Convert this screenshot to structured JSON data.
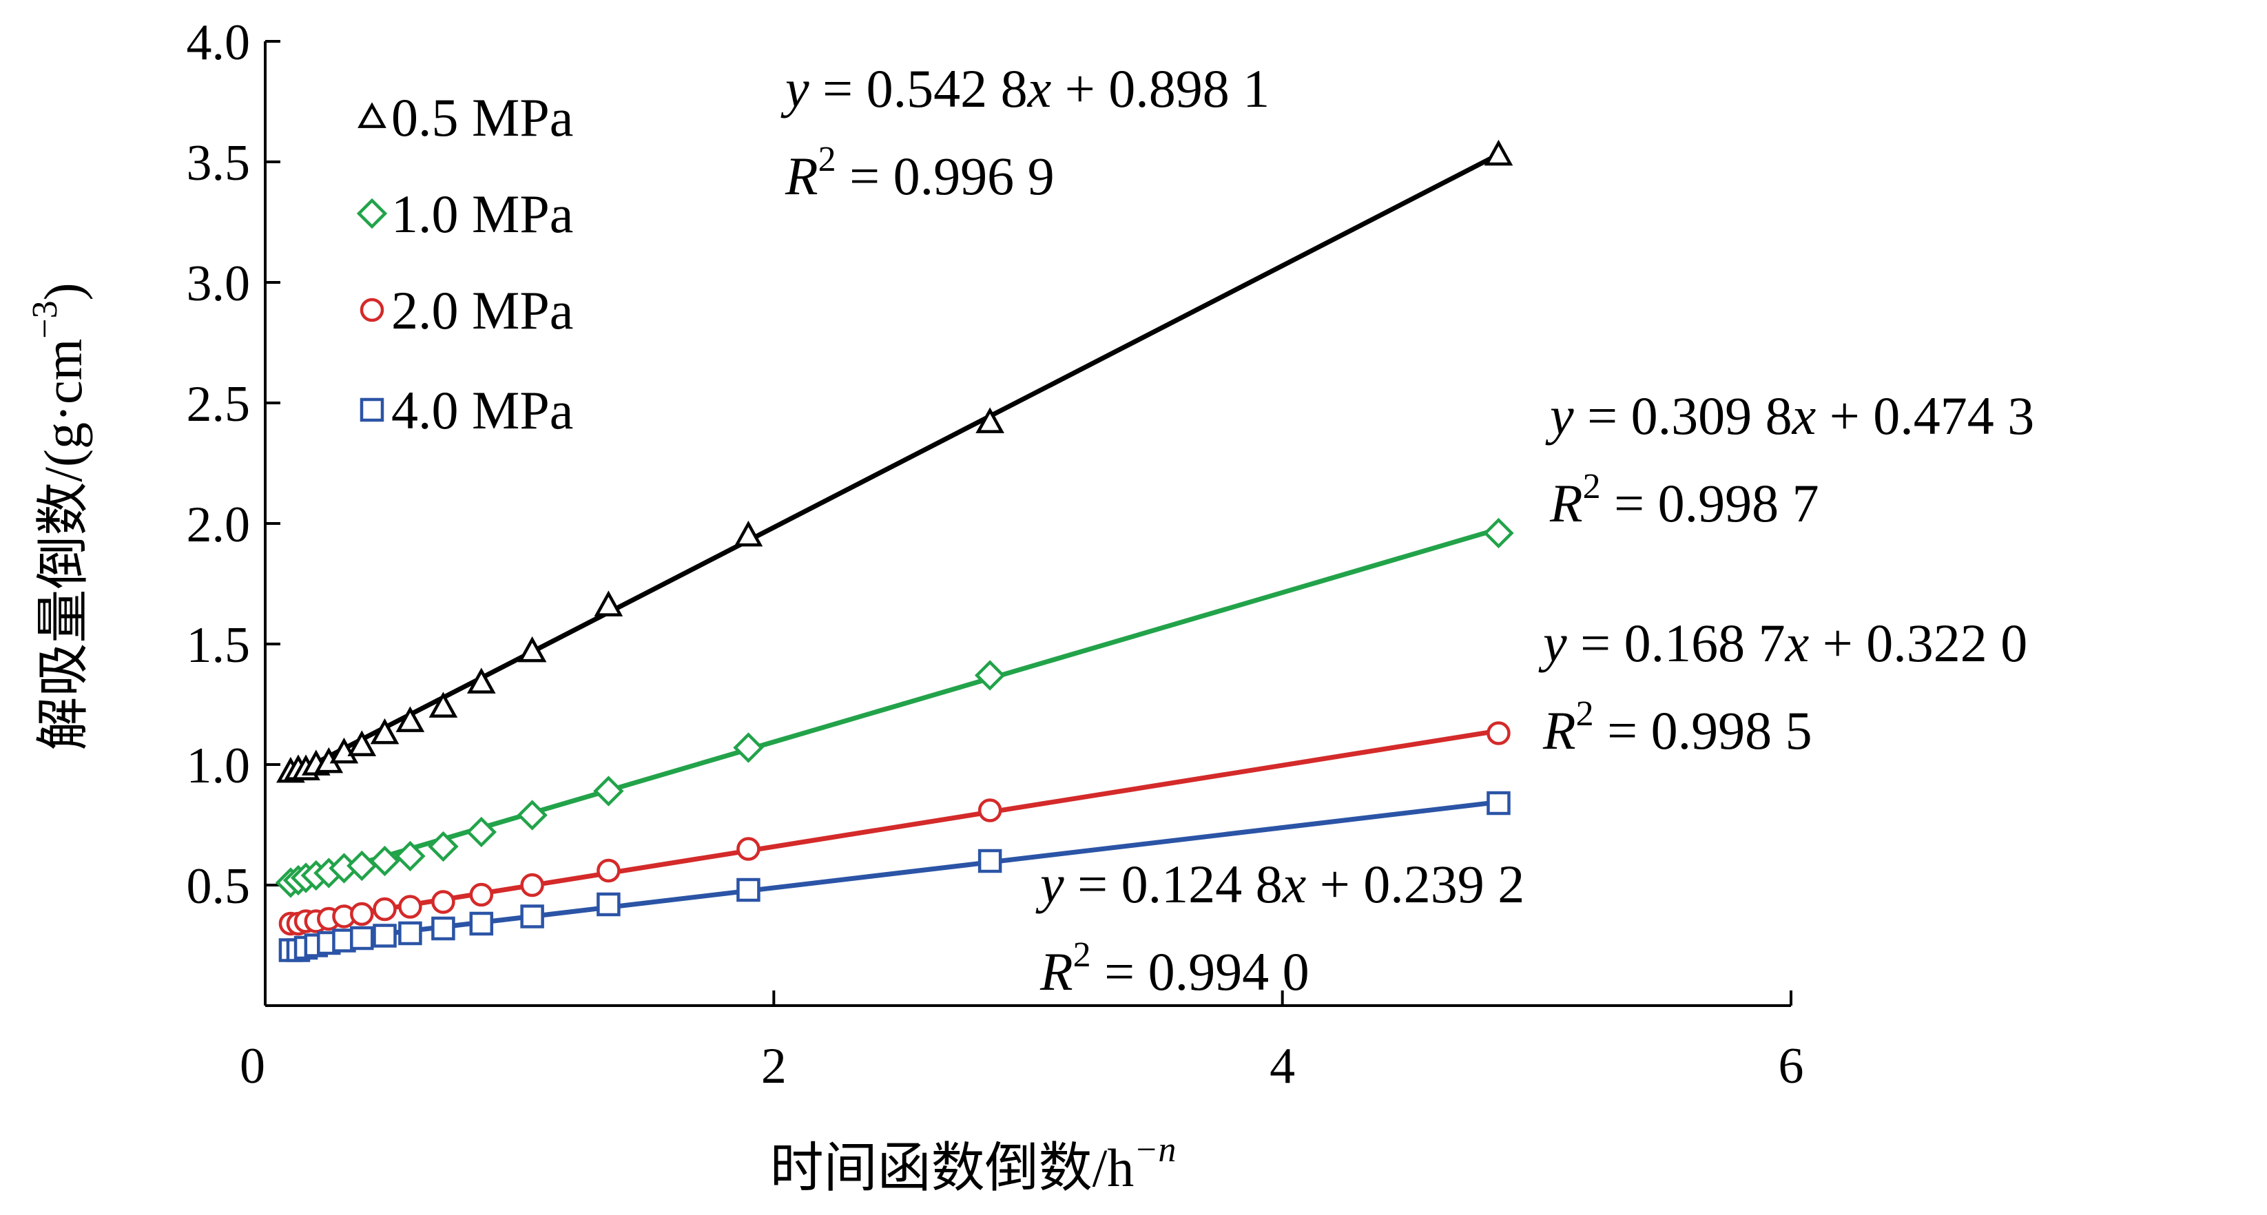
{
  "chart_data": {
    "type": "scatter",
    "title": "",
    "xlabel": "时间函数倒数/h",
    "xlabel_sup": "−n",
    "ylabel": "解吸量倒数/(g·cm",
    "ylabel_sup": "−3",
    "ylabel_end": ")",
    "xlim": [
      0,
      6
    ],
    "ylim": [
      0,
      4.0
    ],
    "xticks": [
      0,
      2,
      4,
      6
    ],
    "xtick_labels": [
      "0",
      "2",
      "4",
      "6"
    ],
    "yticks": [
      0.5,
      1.0,
      1.5,
      2.0,
      2.5,
      3.0,
      3.5,
      4.0
    ],
    "ytick_labels": [
      "0.5",
      "1.0",
      "1.5",
      "2.0",
      "2.5",
      "3.0",
      "3.5",
      "4.0"
    ],
    "grid": false,
    "legend_position": "top-left",
    "x": [
      0.1,
      0.13,
      0.16,
      0.2,
      0.25,
      0.31,
      0.38,
      0.47,
      0.57,
      0.7,
      0.85,
      1.05,
      1.35,
      1.9,
      2.85,
      4.85
    ],
    "series": [
      {
        "name": "0.5 MPa",
        "marker": "triangle",
        "color": "#000000",
        "values": [
          0.97,
          0.98,
          0.98,
          1.0,
          1.01,
          1.05,
          1.08,
          1.13,
          1.18,
          1.24,
          1.34,
          1.47,
          1.66,
          1.95,
          2.42,
          3.53
        ],
        "fit_slope": 0.5428,
        "fit_intercept": 0.8981,
        "equation": "y = 0.542 8x + 0.898 1",
        "r2_label": "R",
        "r2_value": " = 0.996 9"
      },
      {
        "name": "1.0 MPa",
        "marker": "diamond",
        "color": "#22a34a",
        "values": [
          0.51,
          0.52,
          0.53,
          0.54,
          0.55,
          0.57,
          0.58,
          0.6,
          0.62,
          0.66,
          0.72,
          0.79,
          0.89,
          1.07,
          1.37,
          1.96
        ],
        "fit_slope": 0.3098,
        "fit_intercept": 0.4743,
        "equation": "y = 0.309 8x + 0.474 3",
        "r2_label": "R",
        "r2_value": " = 0.998 7"
      },
      {
        "name": "2.0 MPa",
        "marker": "circle",
        "color": "#d42a2a",
        "values": [
          0.34,
          0.34,
          0.35,
          0.35,
          0.36,
          0.37,
          0.38,
          0.4,
          0.41,
          0.43,
          0.46,
          0.5,
          0.56,
          0.65,
          0.81,
          1.13
        ],
        "fit_slope": 0.1687,
        "fit_intercept": 0.322,
        "equation": "y = 0.168 7x + 0.322 0",
        "r2_label": "R",
        "r2_value": " = 0.998 5"
      },
      {
        "name": "4.0 MPa",
        "marker": "square",
        "color": "#2b54a6",
        "values": [
          0.23,
          0.23,
          0.24,
          0.25,
          0.26,
          0.27,
          0.28,
          0.29,
          0.3,
          0.32,
          0.34,
          0.37,
          0.42,
          0.48,
          0.6,
          0.84
        ],
        "fit_slope": 0.1248,
        "fit_intercept": 0.2392,
        "equation": "y = 0.124 8x + 0.239 2",
        "r2_label": "R",
        "r2_value": " = 0.994 0"
      }
    ]
  }
}
